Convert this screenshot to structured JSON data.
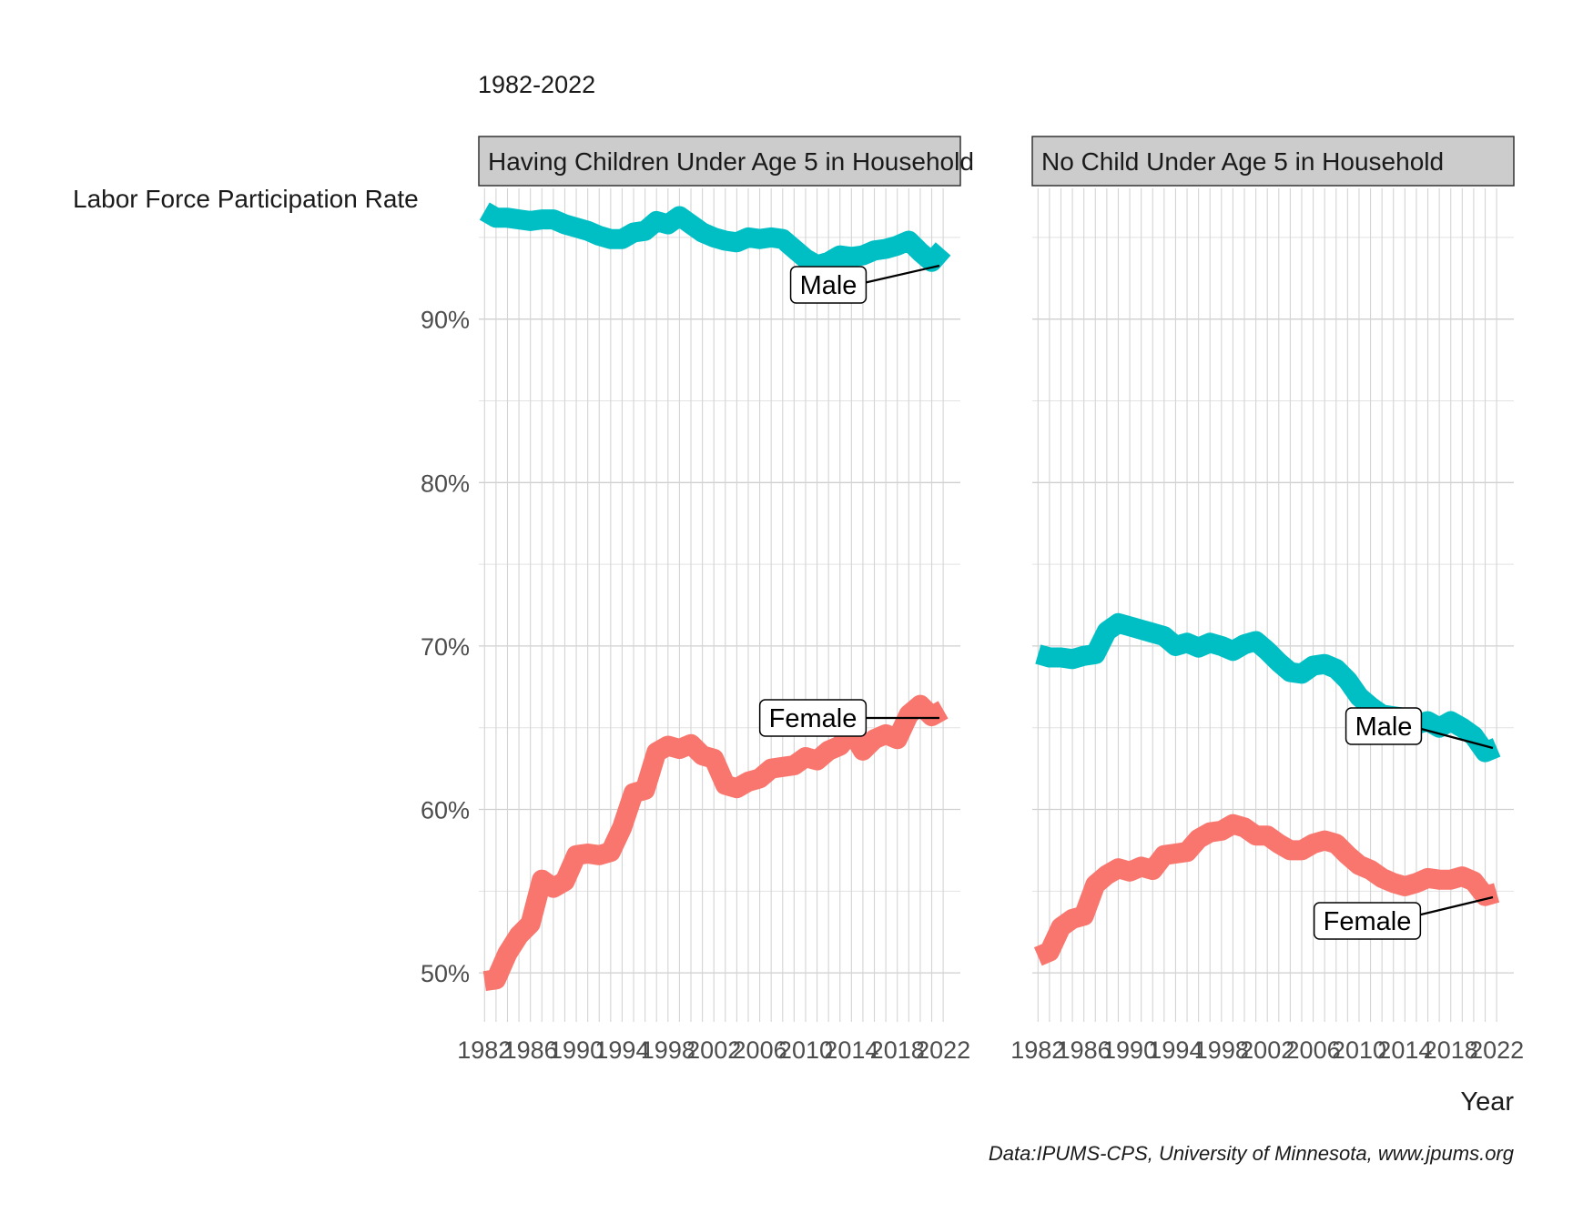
{
  "subtitle": "1982-2022",
  "ylabel": "Labor Force Participation Rate",
  "xlabel": "Year",
  "caption": "Data:IPUMS-CPS, University of Minnesota, www.jpums.org",
  "chart_data": {
    "type": "line",
    "subtitle": "1982-2022",
    "ylabel": "Labor Force Participation Rate",
    "xlabel": "Year",
    "ylim": [
      47,
      98
    ],
    "xlim": [
      1981.5,
      2023.5
    ],
    "y_ticks": [
      50,
      60,
      70,
      80,
      90
    ],
    "y_tick_labels": [
      "50%",
      "60%",
      "70%",
      "80%",
      "90%"
    ],
    "x_ticks": [
      1982,
      1986,
      1990,
      1994,
      1998,
      2002,
      2006,
      2010,
      2014,
      2018,
      2022
    ],
    "x_tick_labels": [
      "1982",
      "1986",
      "1990",
      "1994",
      "1998",
      "2002",
      "2006",
      "2010",
      "2014",
      "2018",
      "2022"
    ],
    "grid": true,
    "series_colors": {
      "Female": "#F8766D",
      "Male": "#00BFC4"
    },
    "x": [
      1982,
      1983,
      1984,
      1985,
      1986,
      1987,
      1988,
      1989,
      1990,
      1991,
      1992,
      1993,
      1994,
      1995,
      1996,
      1997,
      1998,
      1999,
      2000,
      2001,
      2002,
      2003,
      2004,
      2005,
      2006,
      2007,
      2008,
      2009,
      2010,
      2011,
      2012,
      2013,
      2014,
      2015,
      2016,
      2017,
      2018,
      2019,
      2020,
      2021,
      2022
    ],
    "panels": [
      {
        "title": "Having Children Under Age 5 in Household",
        "series": [
          {
            "name": "Male",
            "label_text": "Male",
            "color": "#00BFC4",
            "values": [
              96.6,
              96.2,
              96.2,
              96.1,
              96.0,
              96.1,
              96.1,
              95.8,
              95.6,
              95.4,
              95.1,
              94.9,
              94.9,
              95.3,
              95.4,
              96.0,
              95.8,
              96.3,
              95.8,
              95.3,
              95.0,
              94.8,
              94.7,
              95.0,
              94.9,
              95.0,
              94.9,
              94.3,
              93.7,
              93.3,
              93.5,
              93.9,
              93.8,
              93.9,
              94.2,
              94.3,
              94.5,
              94.8,
              94.1,
              93.5,
              94.3
            ]
          },
          {
            "name": "Female",
            "label_text": "Female",
            "color": "#F8766D",
            "values": [
              49.5,
              49.6,
              51.2,
              52.3,
              53.0,
              55.7,
              55.2,
              55.6,
              57.2,
              57.3,
              57.2,
              57.4,
              58.9,
              61.0,
              61.2,
              63.5,
              63.9,
              63.7,
              64.0,
              63.3,
              63.1,
              61.5,
              61.3,
              61.7,
              61.9,
              62.5,
              62.6,
              62.7,
              63.2,
              63.0,
              63.6,
              63.9,
              64.8,
              63.6,
              64.3,
              64.6,
              64.3,
              65.8,
              66.4,
              65.7,
              66.1
            ]
          }
        ]
      },
      {
        "title": "No Child Under Age 5 in Household",
        "series": [
          {
            "name": "Male",
            "label_text": "Male",
            "color": "#00BFC4",
            "values": [
              69.5,
              69.3,
              69.3,
              69.2,
              69.4,
              69.5,
              70.9,
              71.4,
              71.2,
              71.0,
              70.8,
              70.6,
              70.0,
              70.2,
              69.9,
              70.2,
              70.0,
              69.7,
              70.1,
              70.3,
              69.7,
              69.0,
              68.4,
              68.3,
              68.8,
              68.9,
              68.6,
              67.9,
              66.9,
              66.3,
              65.8,
              65.7,
              65.6,
              65.2,
              65.4,
              65.0,
              65.4,
              65.0,
              64.5,
              63.5,
              63.8
            ]
          },
          {
            "name": "Female",
            "label_text": "Female",
            "color": "#F8766D",
            "values": [
              51.0,
              51.3,
              52.8,
              53.3,
              53.5,
              55.4,
              56.0,
              56.4,
              56.2,
              56.5,
              56.3,
              57.2,
              57.3,
              57.4,
              58.2,
              58.6,
              58.7,
              59.1,
              58.9,
              58.4,
              58.4,
              57.9,
              57.5,
              57.5,
              57.9,
              58.1,
              57.9,
              57.2,
              56.6,
              56.3,
              55.8,
              55.5,
              55.3,
              55.5,
              55.8,
              55.7,
              55.7,
              55.9,
              55.6,
              54.7,
              54.9
            ]
          }
        ]
      }
    ]
  }
}
